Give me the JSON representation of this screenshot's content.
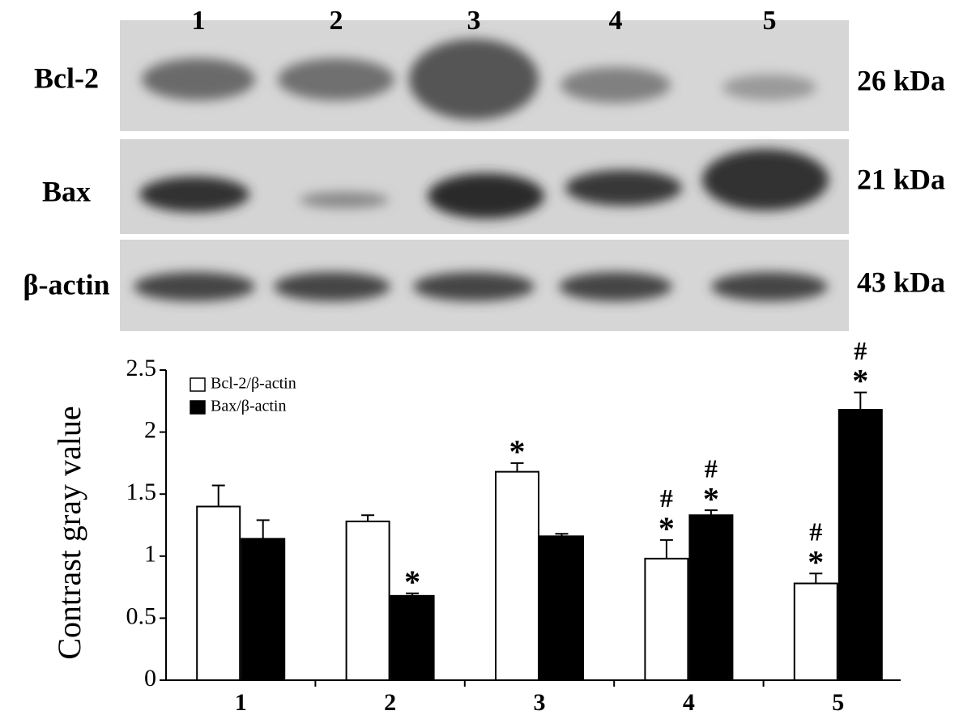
{
  "blot": {
    "lanes": [
      "1",
      "2",
      "3",
      "4",
      "5"
    ],
    "rows": [
      {
        "label": "Bcl-2",
        "size": "26 kDa"
      },
      {
        "label": "Bax",
        "size": "21 kDa"
      },
      {
        "label": "β-actin",
        "size": "43 kDa"
      }
    ]
  },
  "chart_data": {
    "type": "bar",
    "ylabel": "Contrast gray value",
    "categories": [
      "1",
      "2",
      "3",
      "4",
      "5"
    ],
    "series": [
      {
        "name": "Bcl-2/β-actin",
        "color": "#ffffff",
        "values": [
          1.4,
          1.28,
          1.68,
          0.98,
          0.78
        ],
        "errors": [
          0.17,
          0.05,
          0.07,
          0.15,
          0.08
        ],
        "annotations": [
          null,
          null,
          [
            "*"
          ],
          [
            "*",
            "#"
          ],
          [
            "*",
            "#"
          ]
        ]
      },
      {
        "name": "Bax/β-actin",
        "color": "#000000",
        "values": [
          1.14,
          0.68,
          1.16,
          1.33,
          2.18
        ],
        "errors": [
          0.15,
          0.02,
          0.02,
          0.04,
          0.14
        ],
        "annotations": [
          null,
          [
            "*"
          ],
          null,
          [
            "*",
            "#"
          ],
          [
            "*",
            "#"
          ]
        ]
      }
    ],
    "ylim": [
      0,
      2.5
    ],
    "yticks": [
      0,
      0.5,
      1,
      1.5,
      2,
      2.5
    ],
    "legend": "upper left"
  }
}
